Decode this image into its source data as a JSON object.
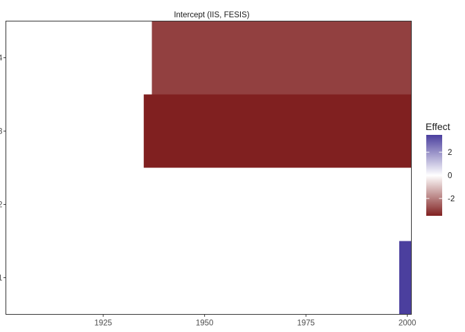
{
  "chart_data": {
    "type": "heatmap",
    "title": "Intercept (IIS, FESIS)",
    "xlabel": "",
    "ylabel": "",
    "xlim": [
      1901,
      2001
    ],
    "ylim": [
      0.5,
      4.5
    ],
    "x_ticks": [
      1925,
      1950,
      1975,
      2000
    ],
    "y_ticks": [
      1,
      2,
      3,
      4
    ],
    "grid": false,
    "tiles": [
      {
        "y": 4,
        "x_start": 1937,
        "x_end": 2001,
        "effect": -3.0
      },
      {
        "y": 3,
        "x_start": 1935,
        "x_end": 2001,
        "effect": -3.5
      },
      {
        "y": 1,
        "x_start": 1998,
        "x_end": 2001,
        "effect": 3.5
      }
    ],
    "legend": {
      "title": "Effect",
      "position": "right",
      "limits": [
        -3.5,
        3.5
      ],
      "breaks": [
        2,
        0,
        -2
      ],
      "labels": [
        "2",
        "0",
        "-2"
      ],
      "colors": {
        "low": "#802020",
        "mid": "#ffffff",
        "high": "#4b3f9e"
      }
    }
  }
}
